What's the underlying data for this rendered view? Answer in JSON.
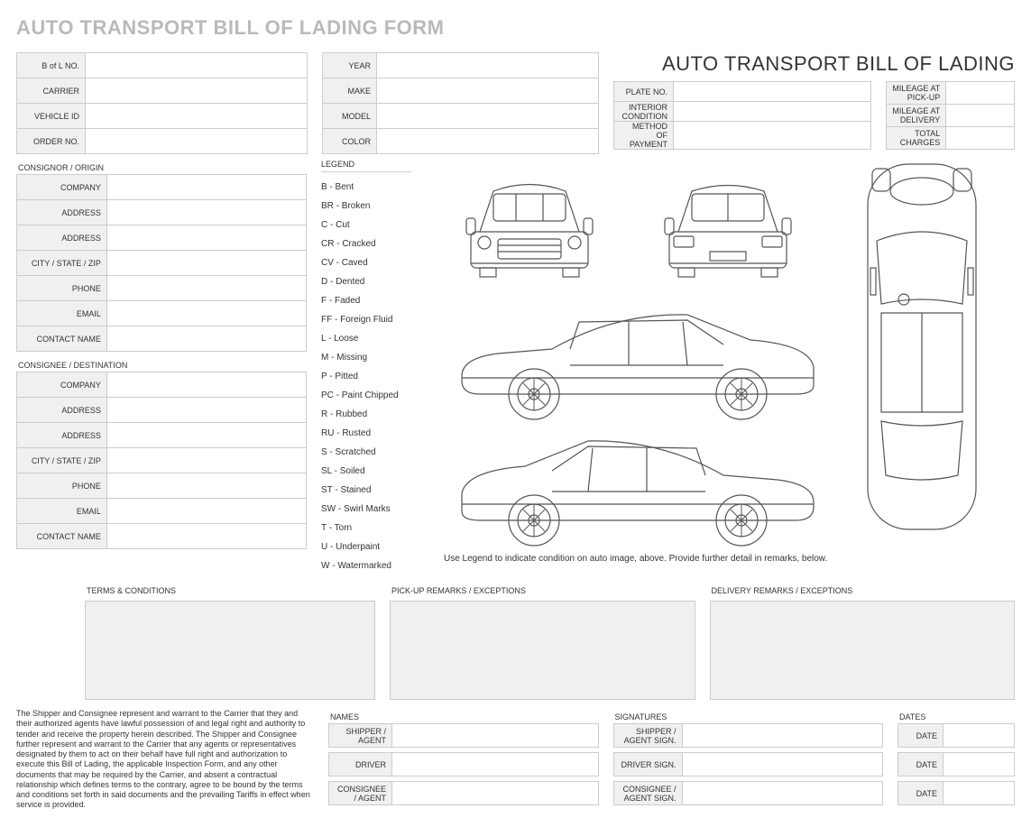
{
  "page_title": "AUTO TRANSPORT BILL OF LADING FORM",
  "doc_title": "AUTO TRANSPORT BILL OF LADING",
  "colors": {
    "header_gray": "#bababa",
    "cell_bg": "#f0f0f0",
    "border": "#cccccc",
    "text": "#333333"
  },
  "block_a": {
    "labels": [
      "B of L NO.",
      "CARRIER",
      "VEHICLE ID",
      "ORDER NO."
    ]
  },
  "block_b": {
    "labels": [
      "YEAR",
      "MAKE",
      "MODEL",
      "COLOR"
    ]
  },
  "block_c": {
    "labels": [
      "PLATE NO.",
      "INTERIOR CONDITION",
      "METHOD OF PAYMENT"
    ]
  },
  "block_d": {
    "labels": [
      "MILEAGE AT PICK-UP",
      "MILEAGE AT DELIVERY",
      "TOTAL CHARGES"
    ]
  },
  "consignor": {
    "header": "CONSIGNOR / ORIGIN",
    "labels": [
      "COMPANY",
      "ADDRESS",
      "ADDRESS",
      "CITY / STATE / ZIP",
      "PHONE",
      "EMAIL",
      "CONTACT NAME"
    ]
  },
  "consignee": {
    "header": "CONSIGNEE / DESTINATION",
    "labels": [
      "COMPANY",
      "ADDRESS",
      "ADDRESS",
      "CITY / STATE / ZIP",
      "PHONE",
      "EMAIL",
      "CONTACT NAME"
    ]
  },
  "legend": {
    "header": "LEGEND",
    "items": [
      "B - Bent",
      "BR - Broken",
      "C - Cut",
      "CR - Cracked",
      "CV - Caved",
      "D - Dented",
      "F - Faded",
      "FF - Foreign Fluid",
      "L - Loose",
      "M - Missing",
      "P - Pitted",
      "PC - Paint Chipped",
      "R - Rubbed",
      "RU - Rusted",
      "S - Scratched",
      "SL - Soiled",
      "ST - Stained",
      "SW - Swirl Marks",
      "T - Torn",
      "U - Underpaint",
      "W - Watermarked"
    ]
  },
  "car_note": "Use Legend to indicate condition on auto image, above.  Provide further detail in remarks, below.",
  "remarks": {
    "terms": "TERMS & CONDITIONS",
    "pickup": "PICK-UP REMARKS / EXCEPTIONS",
    "delivery": "DELIVERY REMARKS / EXCEPTIONS"
  },
  "legal": "The Shipper and Consignee represent and warrant to the Carrier that they and their authorized agents have lawful possession of and legal right and authority to tender and receive the property herein described. The Shipper and Consignee further represent and warrant to the Carrier that any agents or representatives designated by them to act on their behalf have full right and authorization to execute this Bill of Lading, the applicable Inspection Form, and any other documents that may be required by the Carrier, and absent a contractual relationship which defines terms to the contrary, agree to be bound by the terms and conditions set forth in said documents and the prevailing Tariffs in effect when service is provided.",
  "sig": {
    "names_hdr": "NAMES",
    "sigs_hdr": "SIGNATURES",
    "dates_hdr": "DATES",
    "names": [
      "SHIPPER / AGENT",
      "DRIVER",
      "CONSIGNEE / AGENT"
    ],
    "sigs": [
      "SHIPPER / AGENT SIGN.",
      "DRIVER SIGN.",
      "CONSIGNEE / AGENT SIGN."
    ],
    "dates": [
      "DATE",
      "DATE",
      "DATE"
    ]
  },
  "layout": {
    "block_a_label_w": 76,
    "block_a_value_w": 246,
    "block_b_label_w": 60,
    "block_b_value_w": 246,
    "block_c_label_w": 66,
    "block_c_value_w": 220,
    "block_d_label_w": 66,
    "block_d_value_w": 76,
    "party_label_w": 100,
    "party_value_w": 222,
    "sig_name_label_w": 70,
    "sig_sig_label_w": 76,
    "sig_date_label_w": 50
  }
}
